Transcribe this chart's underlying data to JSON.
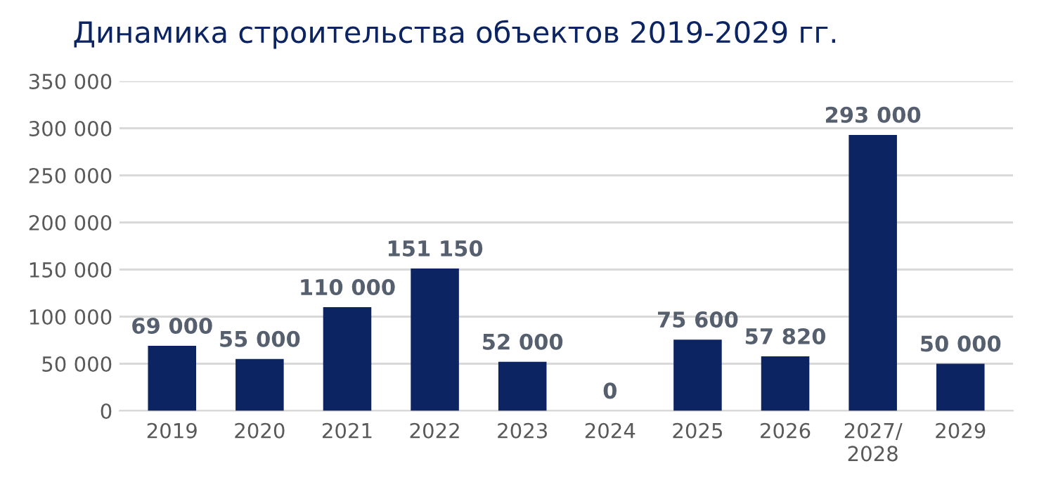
{
  "chart_data": {
    "type": "bar",
    "title": "Динамика строительства объектов 2019-2029 гг.",
    "categories": [
      "2019",
      "2020",
      "2021",
      "2022",
      "2023",
      "2024",
      "2025",
      "2026",
      "2027/\n2028",
      "2029"
    ],
    "values": [
      69000,
      55000,
      110000,
      151150,
      52000,
      0,
      75600,
      57820,
      293000,
      50000
    ],
    "value_labels": [
      "69 000",
      "55 000",
      "110 000",
      "151 150",
      "52 000",
      "0",
      "75 600",
      "57 820",
      "293 000",
      "50 000"
    ],
    "color": "#0c2461",
    "ylim": [
      0,
      350000
    ],
    "yticks": [
      {
        "value": 0,
        "label": "0"
      },
      {
        "value": 50000,
        "label": "50 000"
      },
      {
        "value": 100000,
        "label": "100 000"
      },
      {
        "value": 150000,
        "label": "150 000"
      },
      {
        "value": 200000,
        "label": "200 000"
      },
      {
        "value": 250000,
        "label": "250 000"
      },
      {
        "value": 300000,
        "label": "300 000"
      },
      {
        "value": 350000,
        "label": "350 000"
      }
    ],
    "grid": "y"
  }
}
